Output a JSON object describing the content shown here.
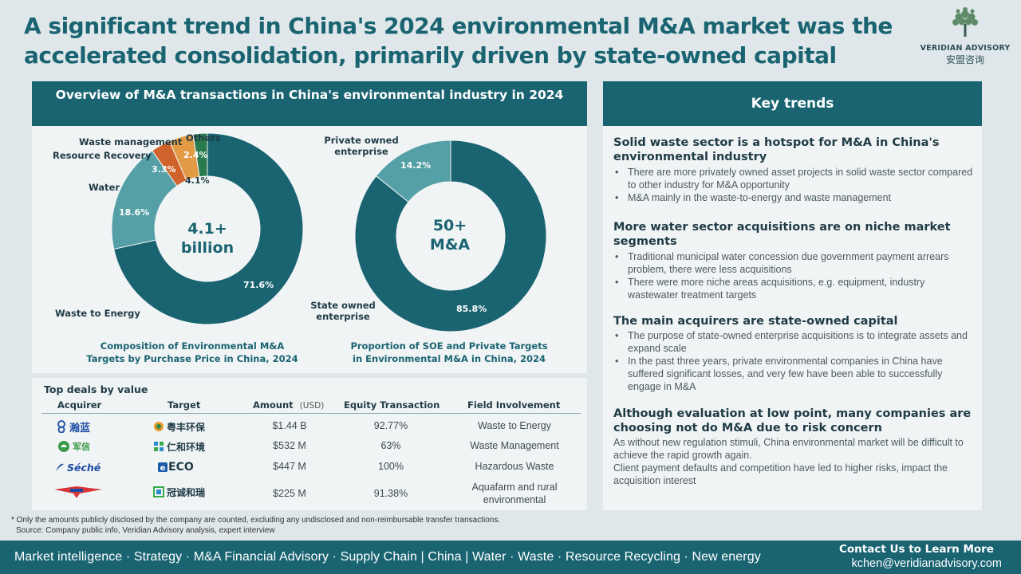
{
  "title": "A significant trend in China's 2024 environmental M&A market was the accelerated consolidation, primarily driven by state-owned capital",
  "logo": {
    "brand": "VERIDIAN ADVISORY",
    "brand_cn": "安盟咨询",
    "icon": "tree-icon"
  },
  "overview": {
    "header": "Overview of M&A transactions in China's environmental industry in 2024",
    "chart1": {
      "center_line1": "4.1+",
      "center_line2": "billion",
      "caption_line1": "Composition of Environmental M&A",
      "caption_line2": "Targets by Purchase Price in China, 2024",
      "labels": {
        "waste_mgmt": "Waste management",
        "others": "Others",
        "resource": "Resource Recovery",
        "water": "Water",
        "wte": "Waste to Energy"
      },
      "pct_labels": {
        "wte": "71.6%",
        "water": "18.6%",
        "resource": "3.3%",
        "waste_mgmt": "4.1%",
        "others": "2.4%"
      }
    },
    "chart2": {
      "center_line1": "50+",
      "center_line2": "M&A",
      "caption_line1": "Proportion of SOE and Private Targets",
      "caption_line2": "in Environmental M&A in China, 2024",
      "labels": {
        "private_1": "Private owned",
        "private_2": "enterprise",
        "soe_1": "State owned",
        "soe_2": "enterprise"
      },
      "pct_labels": {
        "soe": "85.8%",
        "private": "14.2%"
      }
    }
  },
  "chart_data": [
    {
      "type": "pie",
      "title": "Composition of Environmental M&A Targets by Purchase Price in China, 2024",
      "center_text": "4.1+ billion",
      "categories": [
        "Waste to Energy",
        "Water",
        "Resource Recovery",
        "Waste management",
        "Others"
      ],
      "values": [
        71.6,
        18.6,
        3.3,
        4.1,
        2.4
      ],
      "colors": [
        "#1a6472",
        "#55a0a6",
        "#d0632b",
        "#e29a45",
        "#2a7a4f"
      ]
    },
    {
      "type": "pie",
      "title": "Proportion of SOE and Private Targets in Environmental M&A in China, 2024",
      "center_text": "50+ M&A",
      "categories": [
        "State owned enterprise",
        "Private owned enterprise"
      ],
      "values": [
        85.8,
        14.2
      ],
      "colors": [
        "#1a6472",
        "#55a0a6"
      ]
    }
  ],
  "deals": {
    "title": "Top deals by value",
    "headers": {
      "acquirer": "Acquirer",
      "target": "Target",
      "amount": "Amount",
      "amount_unit": "(USD)",
      "equity": "Equity Transaction",
      "field": "Field Involvement"
    },
    "rows": [
      {
        "acquirer": "瀚蓝",
        "target": "粤丰环保",
        "amount": "$1.44 B",
        "equity": "92.77%",
        "field": "Waste to Energy"
      },
      {
        "acquirer": "军信",
        "target": "仁和环境",
        "amount": "$532 M",
        "equity": "63%",
        "field": "Waste Management"
      },
      {
        "acquirer": "Séché",
        "target": "ECO",
        "amount": "$447 M",
        "equity": "100%",
        "field": "Hazardous Waste"
      },
      {
        "acquirer": "",
        "target": "冠诚和瑞",
        "amount": "$225 M",
        "equity": "91.38%",
        "field_line1": "Aquafarm  and rural",
        "field_line2": "environmental"
      }
    ]
  },
  "trends": {
    "header": "Key  trends",
    "s1": {
      "title": "Solid waste sector is a hotspot for M&A in China's environmental industry",
      "b1": "There are more privately owned asset projects in solid waste sector compared to other industry for M&A opportunity",
      "b2": "M&A mainly in the waste-to-energy and waste management"
    },
    "s2": {
      "title": "More water sector acquisitions are on niche market segments",
      "b1": "Traditional municipal water concession due government payment arrears problem, there were less acquisitions",
      "b2": "There were more niche areas acquisitions, e.g. equipment, industry wastewater treatment targets"
    },
    "s3": {
      "title": "The main acquirers are state-owned capital",
      "b1": "The purpose of state-owned enterprise acquisitions is to integrate assets and expand scale",
      "b2": "In the past three years, private environmental companies in China have suffered significant losses, and very few have been able to successfully engage in M&A"
    },
    "s4": {
      "title": "Although evaluation at low point, many companies are choosing not do M&A due to risk concern",
      "p1": "As without new regulation stimuli, China environmental market will be difficult to achieve the rapid growth again.",
      "p2": "Client payment defaults and competition have led to higher risks, impact the acquisition interest"
    }
  },
  "footnote": {
    "line1": "* Only the amounts publicly disclosed by the company are counted, excluding any undisclosed and non-reimbursable transfer transactions.",
    "line2": "Source: Company public info, Veridian Advisory analysis, expert interview"
  },
  "footer": {
    "services": "Market intelligence · Strategy · M&A Financial Advisory · Supply Chain | China  | Water · Waste · Resource Recycling · New energy",
    "contact": "Contact Us to Learn More",
    "email": "kchen@veridianadvisory.com"
  }
}
